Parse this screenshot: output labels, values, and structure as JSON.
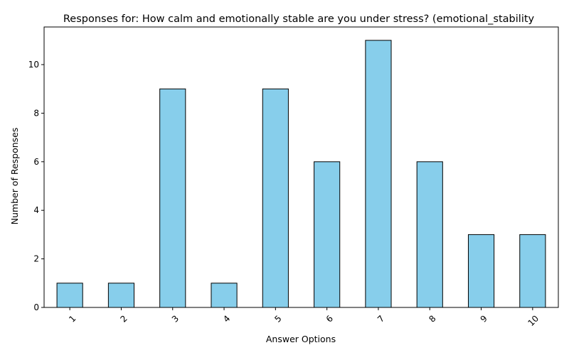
{
  "colors": {
    "bar_fill": "#87ceeb",
    "bar_edge": "#000000",
    "axis": "#000000",
    "background": "#ffffff"
  },
  "chart_data": {
    "type": "bar",
    "title": "Responses for: How calm and emotionally stable are you under stress? (emotional_stability",
    "xlabel": "Answer Options",
    "ylabel": "Number of Responses",
    "categories": [
      "1",
      "2",
      "3",
      "4",
      "5",
      "6",
      "7",
      "8",
      "9",
      "10"
    ],
    "values": [
      1,
      1,
      9,
      1,
      9,
      6,
      11,
      6,
      3,
      3
    ],
    "yticks": [
      0,
      2,
      4,
      6,
      8,
      10
    ],
    "ylim": [
      0,
      11.55
    ],
    "grid": false,
    "legend": false
  }
}
